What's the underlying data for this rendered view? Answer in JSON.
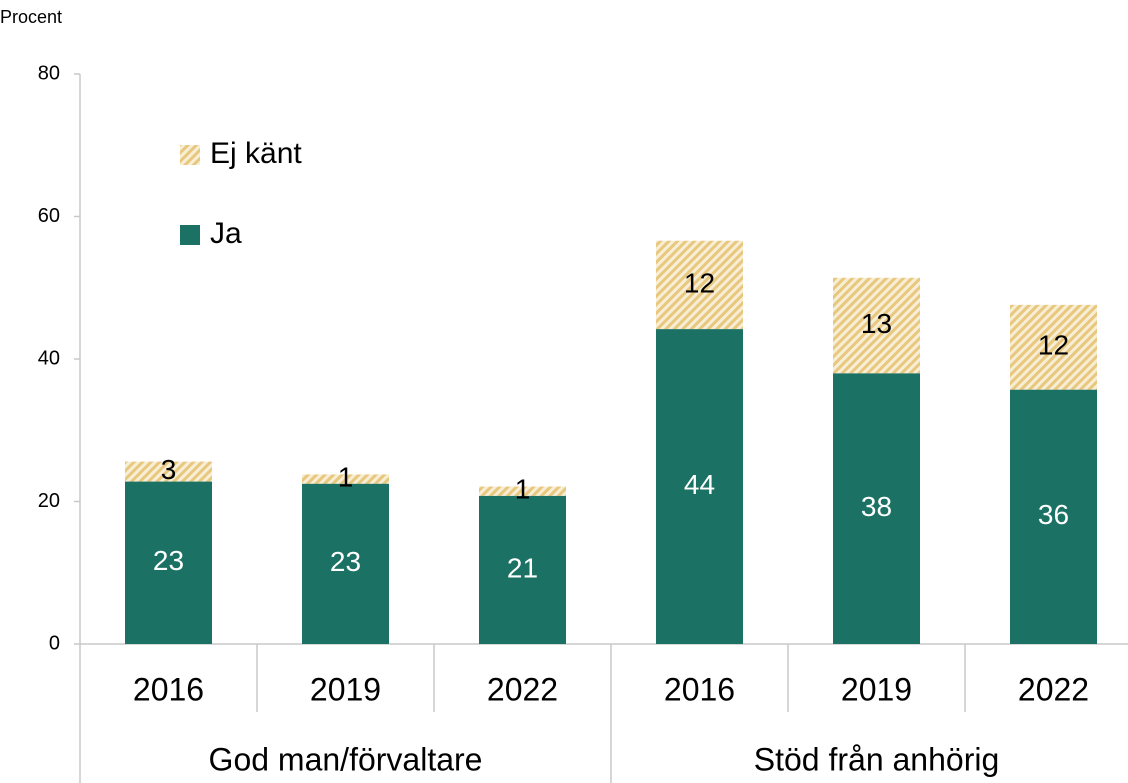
{
  "chart_data": {
    "type": "stacked_bar",
    "y_axis_label": "Procent",
    "categories": [
      "2016",
      "2019",
      "2022",
      "2016",
      "2019",
      "2022"
    ],
    "groups": [
      "God man/förvaltare",
      "Stöd från anhörig"
    ],
    "series": [
      {
        "name": "Ja",
        "color": "#1b7264",
        "values": [
          22.8,
          22.5,
          20.8,
          44.2,
          38,
          35.7
        ],
        "value_labels": [
          "23",
          "23",
          "21",
          "44",
          "38",
          "36"
        ]
      },
      {
        "name": "Ej känt",
        "color": "#e8c77e",
        "values": [
          2.8,
          1.3,
          1.3,
          12.4,
          13.4,
          11.9
        ],
        "value_labels": [
          "3",
          "1",
          "1",
          "12",
          "13",
          "12"
        ]
      }
    ],
    "ylim": [
      0,
      80
    ],
    "yticks": [
      0,
      20,
      40,
      60,
      80
    ],
    "grid": false
  }
}
